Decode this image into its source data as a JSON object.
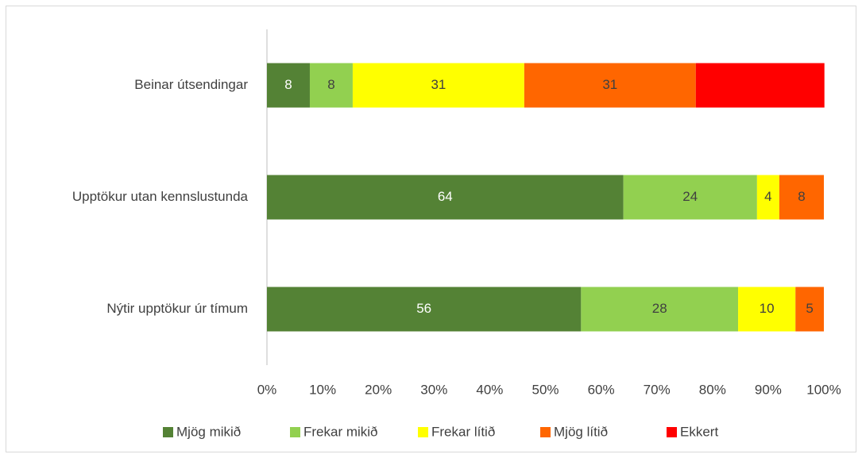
{
  "chart_data": {
    "type": "stacked-bar-horizontal",
    "categories": [
      "Beinar útsendingar",
      "Upptökur utan kennslustunda",
      "Nýtir upptökur úr tímum"
    ],
    "series": [
      {
        "name": "Mjög mikið",
        "color": "#548235",
        "values": [
          7.7,
          64,
          56.4
        ],
        "value_labels": [
          "8",
          "64",
          "56"
        ]
      },
      {
        "name": "Frekar mikið",
        "color": "#92d050",
        "values": [
          7.7,
          24,
          28.2
        ],
        "value_labels": [
          "8",
          "24",
          "28"
        ]
      },
      {
        "name": "Frekar lítið",
        "color": "#ffff00",
        "values": [
          30.8,
          4,
          10.3
        ],
        "value_labels": [
          "31",
          "4",
          "10"
        ]
      },
      {
        "name": "Mjög lítið",
        "color": "#ff6600",
        "values": [
          30.8,
          8,
          5.1
        ],
        "value_labels": [
          "31",
          "8",
          "5"
        ]
      },
      {
        "name": "Ekkert",
        "color": "#ff0000",
        "values": [
          23.1,
          0,
          0
        ]
      }
    ],
    "xlim": [
      0,
      100
    ],
    "xticks": [
      {
        "value": 0,
        "label": "0%"
      },
      {
        "value": 10,
        "label": "10%"
      },
      {
        "value": 20,
        "label": "20%"
      },
      {
        "value": 30,
        "label": "30%"
      },
      {
        "value": 40,
        "label": "40%"
      },
      {
        "value": 50,
        "label": "50%"
      },
      {
        "value": 60,
        "label": "60%"
      },
      {
        "value": 70,
        "label": "70%"
      },
      {
        "value": 80,
        "label": "80%"
      },
      {
        "value": 90,
        "label": "90%"
      },
      {
        "value": 100,
        "label": "100%"
      }
    ],
    "grid": false,
    "legend": "bottom"
  }
}
